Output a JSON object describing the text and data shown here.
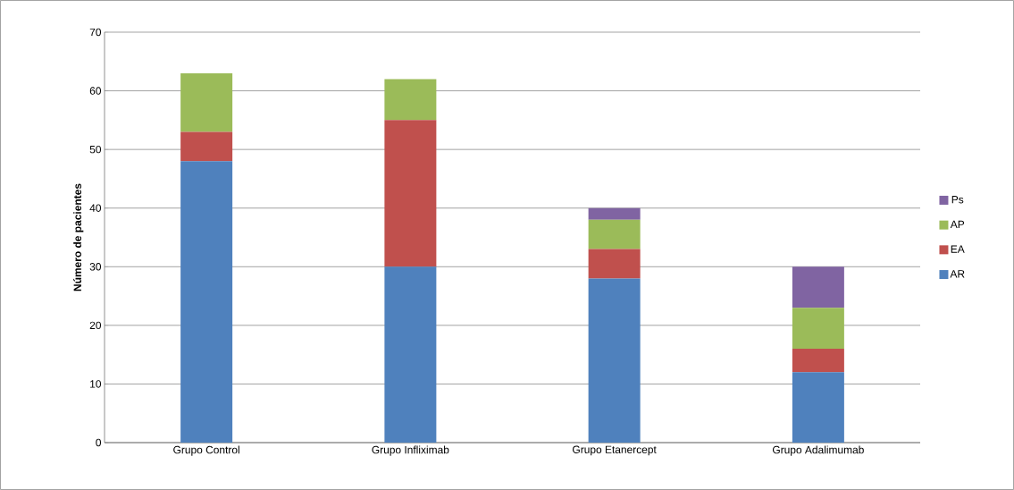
{
  "chart_data": {
    "type": "bar",
    "stacked": true,
    "ylabel": "Número de pacientes",
    "categories": [
      "Grupo Control",
      "Grupo Infliximab",
      "Grupo Etanercept",
      "Grupo Adalimumab"
    ],
    "series": [
      {
        "name": "AR",
        "color": "#4f81bd",
        "values": [
          48,
          30,
          28,
          12
        ]
      },
      {
        "name": "EA",
        "color": "#c0504d",
        "values": [
          5,
          25,
          5,
          4
        ]
      },
      {
        "name": "AP",
        "color": "#9bbb59",
        "values": [
          10,
          7,
          5,
          7
        ]
      },
      {
        "name": "Ps",
        "color": "#8064a2",
        "values": [
          0,
          0,
          2,
          7
        ]
      }
    ],
    "ylim": [
      0,
      70
    ],
    "yticks": [
      0,
      10,
      20,
      30,
      40,
      50,
      60,
      70
    ],
    "grid": "y",
    "legend": "right"
  }
}
